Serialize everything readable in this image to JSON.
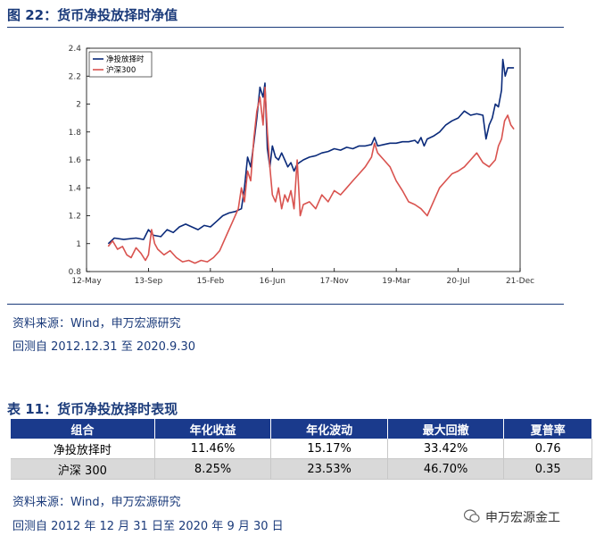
{
  "figure_title": "图 22：货币净投放择时净值",
  "chart_data": {
    "type": "line",
    "ylim": [
      0.8,
      2.4
    ],
    "yticks": [
      0.8,
      1,
      1.2,
      1.4,
      1.6,
      1.8,
      2,
      2.2,
      2.4
    ],
    "xticks": [
      "12-May",
      "13-Sep",
      "15-Feb",
      "16-Jun",
      "17-Nov",
      "19-Mar",
      "20-Jul",
      "21-Dec"
    ],
    "legend_position": "top-left",
    "series": [
      {
        "name": "净投放择时",
        "color": "#0a2a7a",
        "points": [
          [
            0.35,
            1.0
          ],
          [
            0.45,
            1.04
          ],
          [
            0.6,
            1.03
          ],
          [
            0.8,
            1.04
          ],
          [
            0.92,
            1.03
          ],
          [
            1.0,
            1.1
          ],
          [
            1.08,
            1.06
          ],
          [
            1.2,
            1.05
          ],
          [
            1.3,
            1.1
          ],
          [
            1.4,
            1.08
          ],
          [
            1.5,
            1.12
          ],
          [
            1.6,
            1.14
          ],
          [
            1.7,
            1.12
          ],
          [
            1.8,
            1.1
          ],
          [
            1.9,
            1.13
          ],
          [
            2.0,
            1.12
          ],
          [
            2.1,
            1.16
          ],
          [
            2.2,
            1.2
          ],
          [
            2.3,
            1.22
          ],
          [
            2.4,
            1.23
          ],
          [
            2.5,
            1.25
          ],
          [
            2.55,
            1.4
          ],
          [
            2.6,
            1.62
          ],
          [
            2.65,
            1.55
          ],
          [
            2.7,
            1.72
          ],
          [
            2.75,
            1.9
          ],
          [
            2.8,
            2.12
          ],
          [
            2.85,
            2.05
          ],
          [
            2.88,
            2.15
          ],
          [
            2.92,
            1.68
          ],
          [
            2.96,
            1.55
          ],
          [
            3.0,
            1.7
          ],
          [
            3.05,
            1.62
          ],
          [
            3.1,
            1.6
          ],
          [
            3.15,
            1.65
          ],
          [
            3.2,
            1.6
          ],
          [
            3.25,
            1.55
          ],
          [
            3.3,
            1.58
          ],
          [
            3.35,
            1.52
          ],
          [
            3.4,
            1.57
          ],
          [
            3.5,
            1.6
          ],
          [
            3.6,
            1.62
          ],
          [
            3.7,
            1.63
          ],
          [
            3.8,
            1.65
          ],
          [
            3.9,
            1.66
          ],
          [
            4.0,
            1.68
          ],
          [
            4.1,
            1.67
          ],
          [
            4.2,
            1.69
          ],
          [
            4.3,
            1.68
          ],
          [
            4.4,
            1.7
          ],
          [
            4.5,
            1.7
          ],
          [
            4.6,
            1.71
          ],
          [
            4.65,
            1.76
          ],
          [
            4.7,
            1.7
          ],
          [
            4.8,
            1.71
          ],
          [
            4.9,
            1.72
          ],
          [
            5.0,
            1.72
          ],
          [
            5.1,
            1.73
          ],
          [
            5.2,
            1.73
          ],
          [
            5.3,
            1.74
          ],
          [
            5.35,
            1.72
          ],
          [
            5.4,
            1.76
          ],
          [
            5.45,
            1.7
          ],
          [
            5.5,
            1.75
          ],
          [
            5.6,
            1.77
          ],
          [
            5.7,
            1.8
          ],
          [
            5.8,
            1.85
          ],
          [
            5.9,
            1.88
          ],
          [
            6.0,
            1.9
          ],
          [
            6.1,
            1.95
          ],
          [
            6.2,
            1.92
          ],
          [
            6.3,
            1.93
          ],
          [
            6.4,
            1.92
          ],
          [
            6.45,
            1.75
          ],
          [
            6.5,
            1.85
          ],
          [
            6.55,
            1.9
          ],
          [
            6.6,
            2.0
          ],
          [
            6.65,
            1.98
          ],
          [
            6.7,
            2.1
          ],
          [
            6.72,
            2.32
          ],
          [
            6.76,
            2.2
          ],
          [
            6.8,
            2.26
          ],
          [
            6.9,
            2.26
          ]
        ]
      },
      {
        "name": "沪深300",
        "color": "#d9534f",
        "points": [
          [
            0.35,
            0.98
          ],
          [
            0.42,
            1.02
          ],
          [
            0.5,
            0.96
          ],
          [
            0.58,
            0.98
          ],
          [
            0.65,
            0.92
          ],
          [
            0.72,
            0.9
          ],
          [
            0.8,
            0.97
          ],
          [
            0.88,
            0.93
          ],
          [
            0.95,
            0.88
          ],
          [
            1.0,
            0.92
          ],
          [
            1.05,
            1.1
          ],
          [
            1.1,
            1.0
          ],
          [
            1.15,
            0.96
          ],
          [
            1.25,
            0.92
          ],
          [
            1.35,
            0.95
          ],
          [
            1.45,
            0.9
          ],
          [
            1.55,
            0.87
          ],
          [
            1.65,
            0.88
          ],
          [
            1.75,
            0.86
          ],
          [
            1.85,
            0.88
          ],
          [
            1.95,
            0.87
          ],
          [
            2.05,
            0.9
          ],
          [
            2.15,
            0.95
          ],
          [
            2.25,
            1.05
          ],
          [
            2.35,
            1.15
          ],
          [
            2.45,
            1.25
          ],
          [
            2.5,
            1.4
          ],
          [
            2.55,
            1.3
          ],
          [
            2.6,
            1.52
          ],
          [
            2.65,
            1.45
          ],
          [
            2.7,
            1.75
          ],
          [
            2.75,
            1.95
          ],
          [
            2.8,
            2.05
          ],
          [
            2.85,
            1.85
          ],
          [
            2.88,
            2.12
          ],
          [
            2.92,
            1.8
          ],
          [
            2.96,
            1.55
          ],
          [
            3.0,
            1.35
          ],
          [
            3.05,
            1.3
          ],
          [
            3.1,
            1.4
          ],
          [
            3.15,
            1.25
          ],
          [
            3.2,
            1.35
          ],
          [
            3.25,
            1.3
          ],
          [
            3.3,
            1.38
          ],
          [
            3.35,
            1.25
          ],
          [
            3.4,
            1.6
          ],
          [
            3.45,
            1.2
          ],
          [
            3.5,
            1.28
          ],
          [
            3.6,
            1.3
          ],
          [
            3.7,
            1.25
          ],
          [
            3.8,
            1.35
          ],
          [
            3.9,
            1.3
          ],
          [
            4.0,
            1.38
          ],
          [
            4.1,
            1.35
          ],
          [
            4.2,
            1.4
          ],
          [
            4.3,
            1.45
          ],
          [
            4.4,
            1.5
          ],
          [
            4.5,
            1.55
          ],
          [
            4.6,
            1.62
          ],
          [
            4.65,
            1.72
          ],
          [
            4.7,
            1.65
          ],
          [
            4.8,
            1.6
          ],
          [
            4.9,
            1.55
          ],
          [
            5.0,
            1.45
          ],
          [
            5.1,
            1.38
          ],
          [
            5.2,
            1.3
          ],
          [
            5.3,
            1.28
          ],
          [
            5.4,
            1.25
          ],
          [
            5.5,
            1.2
          ],
          [
            5.6,
            1.3
          ],
          [
            5.7,
            1.4
          ],
          [
            5.8,
            1.45
          ],
          [
            5.9,
            1.5
          ],
          [
            6.0,
            1.52
          ],
          [
            6.1,
            1.55
          ],
          [
            6.2,
            1.6
          ],
          [
            6.3,
            1.65
          ],
          [
            6.4,
            1.58
          ],
          [
            6.5,
            1.55
          ],
          [
            6.6,
            1.6
          ],
          [
            6.65,
            1.7
          ],
          [
            6.7,
            1.75
          ],
          [
            6.75,
            1.88
          ],
          [
            6.8,
            1.92
          ],
          [
            6.85,
            1.85
          ],
          [
            6.9,
            1.82
          ]
        ]
      }
    ]
  },
  "sources": [
    "资料来源：Wind，申万宏源研究",
    "回测自 2012.12.31 至 2020.9.30"
  ],
  "table_title": "表 11：货币净投放择时表现",
  "table": {
    "headers": [
      "组合",
      "年化收益",
      "年化波动",
      "最大回撤",
      "夏普率"
    ],
    "rows": [
      [
        "净投放择时",
        "11.46%",
        "15.17%",
        "33.42%",
        "0.76"
      ],
      [
        "沪深 300",
        "8.25%",
        "23.53%",
        "46.70%",
        "0.35"
      ]
    ]
  },
  "table_sources": [
    "资料来源：Wind，申万宏源研究",
    "回测自 2012 年 12 月 31 日至 2020 年 9 月 30 日"
  ],
  "watermark": "申万宏源金工",
  "watermark_icon": "wechat-icon"
}
